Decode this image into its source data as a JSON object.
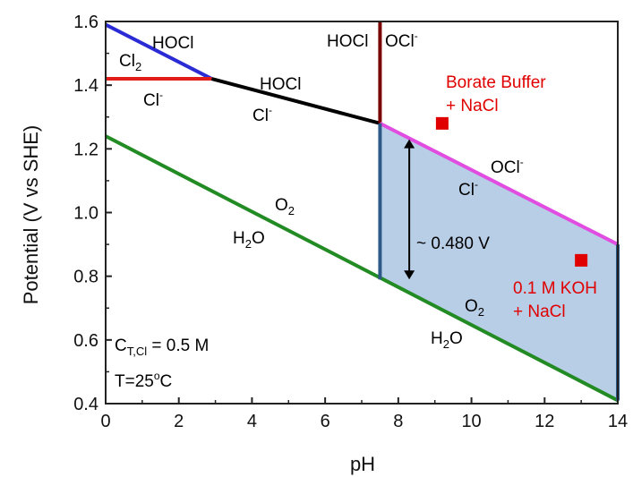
{
  "chart_data": {
    "type": "line",
    "xlabel": "pH",
    "ylabel": "Potential (V vs SHE)",
    "xlim": [
      0,
      14
    ],
    "ylim": [
      0.4,
      1.6
    ],
    "x_ticks": [
      "0",
      "2",
      "4",
      "6",
      "8",
      "10",
      "12",
      "14"
    ],
    "y_ticks": [
      "0.4",
      "0.6",
      "0.8",
      "1.0",
      "1.2",
      "1.4",
      "1.6"
    ],
    "grid": false,
    "series": [
      {
        "color": "#2b2bd6",
        "points": [
          [
            0,
            1.59
          ],
          [
            2.9,
            1.42
          ]
        ]
      },
      {
        "color": "#e21b1b",
        "points": [
          [
            0,
            1.42
          ],
          [
            2.9,
            1.42
          ]
        ]
      },
      {
        "color": "#000000",
        "points": [
          [
            2.9,
            1.42
          ],
          [
            7.5,
            1.28
          ]
        ]
      },
      {
        "color": "#7a0000",
        "points": [
          [
            7.5,
            1.6
          ],
          [
            7.5,
            1.28
          ]
        ]
      },
      {
        "color": "#e04de0",
        "points": [
          [
            7.5,
            1.28
          ],
          [
            14,
            0.9
          ]
        ]
      },
      {
        "color": "#238b23",
        "points": [
          [
            0,
            1.24
          ],
          [
            14,
            0.41
          ]
        ]
      }
    ],
    "shaded_region": {
      "color": "#b8cde6",
      "edge_color": "#2e5888",
      "points": [
        [
          7.5,
          1.28
        ],
        [
          14,
          0.9
        ],
        [
          14,
          0.41
        ],
        [
          7.5,
          0.79
        ]
      ]
    },
    "double_arrow": {
      "x": 8.3,
      "y_from": 0.79,
      "y_to": 1.23,
      "label": "~ 0.480 V"
    },
    "markers": [
      {
        "label": "Borate Buffer",
        "label2": "+ NaCl",
        "x": 9.2,
        "y": 1.28,
        "color": "#e00000"
      },
      {
        "label": "0.1 M KOH",
        "label2": "+ NaCl",
        "x": 13.0,
        "y": 0.85,
        "color": "#e00000"
      }
    ],
    "annotations": {
      "hocl_top": "HOCl",
      "cl2": "Cl",
      "cl2_sub": "2",
      "cl_minus_1": "Cl",
      "minus": "-",
      "hocl_mid": "HOCl",
      "cl_minus_2": "Cl",
      "hocl_vert": "HOCl",
      "ocl_vert": "OCl",
      "ocl_right": "OCl",
      "cl_minus_3": "Cl",
      "o2_a": "O",
      "o2_sub": "2",
      "h2o_a_h": "H",
      "h2o_a_sub": "2",
      "h2o_a_o": "O",
      "o2_b": "O",
      "h2o_b_h": "H",
      "h2o_b_o": "O",
      "ctcl_c": "C",
      "ctcl_sub": "T,Cl",
      "ctcl_val": " = 0.5 M",
      "temp_pre": "T=25",
      "temp_deg": "o",
      "temp_unit": "C"
    }
  }
}
